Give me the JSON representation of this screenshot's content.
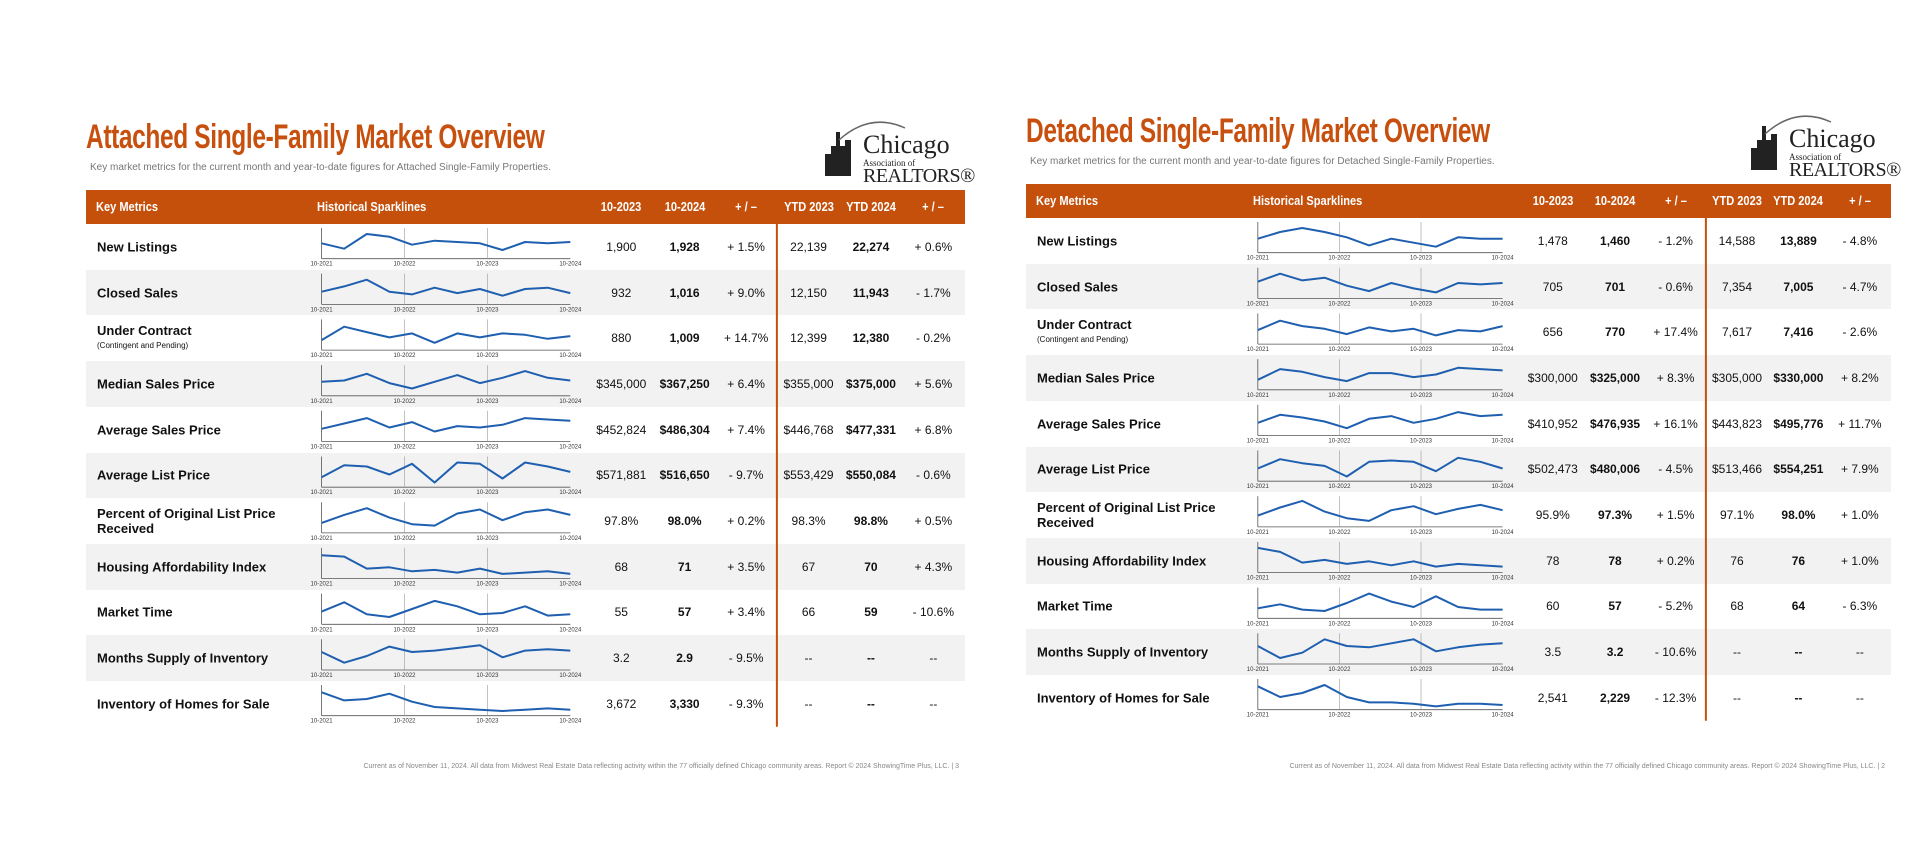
{
  "logo": {
    "name": "Chicago",
    "line2": "Association of",
    "line3": "REALTORS®"
  },
  "sparkline_axis": [
    "10-2021",
    "10-2022",
    "10-2023",
    "10-2024"
  ],
  "sparkline_ylim": [
    0,
    100
  ],
  "pages": [
    {
      "title": "Attached Single-Family Market Overview",
      "subtitle": "Key market metrics for the current month and year-to-date figures for Attached Single-Family Properties.",
      "headers": [
        "Key Metrics",
        "Historical Sparklines",
        "10-2023",
        "10-2024",
        "+ / –",
        "YTD 2023",
        "YTD 2024",
        "+ / –"
      ],
      "rows": [
        {
          "metric": "New Listings",
          "sparkline": [
            50,
            30,
            85,
            75,
            45,
            60,
            55,
            50,
            25,
            55,
            50,
            55
          ],
          "values": [
            "1,900",
            "1,928",
            "+ 1.5%",
            "22,139",
            "22,274",
            "+ 0.6%"
          ]
        },
        {
          "metric": "Closed Sales",
          "sparkline": [
            40,
            60,
            85,
            40,
            30,
            55,
            35,
            50,
            25,
            50,
            55,
            35
          ],
          "values": [
            "932",
            "1,016",
            "+ 9.0%",
            "12,150",
            "11,943",
            "- 1.7%"
          ]
        },
        {
          "metric": "Under Contract",
          "note": "(Contingent and Pending)",
          "sparkline": [
            30,
            80,
            60,
            40,
            55,
            20,
            55,
            40,
            55,
            50,
            35,
            45
          ],
          "values": [
            "880",
            "1,009",
            "+ 14.7%",
            "12,399",
            "12,380",
            "- 0.2%"
          ]
        },
        {
          "metric": "Median Sales Price",
          "sparkline": [
            45,
            50,
            75,
            40,
            20,
            45,
            70,
            40,
            60,
            85,
            60,
            50
          ],
          "values": [
            "$345,000",
            "$367,250",
            "+ 6.4%",
            "$355,000",
            "$375,000",
            "+ 5.6%"
          ]
        },
        {
          "metric": "Average Sales Price",
          "sparkline": [
            40,
            60,
            80,
            45,
            65,
            30,
            50,
            45,
            55,
            80,
            75,
            70
          ],
          "values": [
            "$452,824",
            "$486,304",
            "+ 7.4%",
            "$446,768",
            "$477,331",
            "+ 6.8%"
          ]
        },
        {
          "metric": "Average List Price",
          "sparkline": [
            30,
            75,
            70,
            40,
            80,
            10,
            85,
            80,
            25,
            85,
            70,
            50
          ],
          "values": [
            "$571,881",
            "$516,650",
            "- 9.7%",
            "$553,429",
            "$550,084",
            "- 0.6%"
          ]
        },
        {
          "metric": "Percent of Original List Price Received",
          "sparkline": [
            30,
            60,
            85,
            50,
            25,
            20,
            65,
            80,
            40,
            70,
            80,
            60
          ],
          "values": [
            "97.8%",
            "98.0%",
            "+ 0.2%",
            "98.3%",
            "98.8%",
            "+ 0.5%"
          ]
        },
        {
          "metric": "Housing Affordability Index",
          "sparkline": [
            80,
            75,
            30,
            35,
            20,
            25,
            15,
            30,
            10,
            15,
            20,
            10
          ],
          "values": [
            "68",
            "71",
            "+ 3.5%",
            "67",
            "70",
            "+ 4.3%"
          ]
        },
        {
          "metric": "Market Time",
          "sparkline": [
            40,
            75,
            30,
            20,
            50,
            80,
            60,
            30,
            35,
            60,
            25,
            30
          ],
          "values": [
            "55",
            "57",
            "+ 3.4%",
            "66",
            "59",
            "- 10.6%"
          ]
        },
        {
          "metric": "Months Supply of Inventory",
          "sparkline": [
            60,
            20,
            45,
            80,
            60,
            65,
            75,
            85,
            40,
            65,
            70,
            65
          ],
          "values": [
            "3.2",
            "2.9",
            "- 9.5%",
            "--",
            "--",
            "--"
          ]
        },
        {
          "metric": "Inventory of Homes for Sale",
          "sparkline": [
            80,
            50,
            55,
            75,
            45,
            25,
            20,
            15,
            10,
            15,
            20,
            15
          ],
          "values": [
            "3,672",
            "3,330",
            "- 9.3%",
            "--",
            "--",
            "--"
          ]
        }
      ],
      "footer": "Current as of November 11, 2024.  All data from Midwest Real Estate Data reflecting activity within the 77 officially defined Chicago community areas. Report © 2024 ShowingTime Plus, LLC.  |  3"
    },
    {
      "title": "Detached Single-Family Market Overview",
      "subtitle": "Key market metrics for the current month and year-to-date figures for Detached Single-Family Properties.",
      "headers": [
        "Key Metrics",
        "Historical Sparklines",
        "10-2023",
        "10-2024",
        "+ / –",
        "YTD 2023",
        "YTD 2024",
        "+ / –"
      ],
      "rows": [
        {
          "metric": "New Listings",
          "sparkline": [
            45,
            70,
            85,
            70,
            50,
            20,
            45,
            30,
            15,
            50,
            45,
            45
          ],
          "values": [
            "1,478",
            "1,460",
            "- 1.2%",
            "14,588",
            "13,889",
            "- 4.8%"
          ]
        },
        {
          "metric": "Closed Sales",
          "sparkline": [
            55,
            85,
            60,
            70,
            40,
            20,
            50,
            30,
            15,
            50,
            45,
            50
          ],
          "values": [
            "705",
            "701",
            "- 0.6%",
            "7,354",
            "7,005",
            "- 4.7%"
          ]
        },
        {
          "metric": "Under Contract",
          "note": "(Contingent and Pending)",
          "sparkline": [
            45,
            80,
            60,
            50,
            30,
            55,
            40,
            50,
            25,
            45,
            40,
            60
          ],
          "values": [
            "656",
            "770",
            "+ 17.4%",
            "7,617",
            "7,416",
            "- 2.6%"
          ]
        },
        {
          "metric": "Median Sales Price",
          "sparkline": [
            30,
            70,
            60,
            40,
            25,
            55,
            55,
            40,
            50,
            75,
            70,
            65
          ],
          "values": [
            "$300,000",
            "$325,000",
            "+ 8.3%",
            "$305,000",
            "$330,000",
            "+ 8.2%"
          ]
        },
        {
          "metric": "Average Sales Price",
          "sparkline": [
            40,
            70,
            60,
            45,
            20,
            55,
            65,
            40,
            55,
            80,
            65,
            70
          ],
          "values": [
            "$410,952",
            "$476,935",
            "+ 16.1%",
            "$443,823",
            "$495,776",
            "+ 11.7%"
          ]
        },
        {
          "metric": "Average List Price",
          "sparkline": [
            40,
            75,
            60,
            50,
            10,
            65,
            70,
            65,
            30,
            80,
            65,
            40
          ],
          "values": [
            "$502,473",
            "$480,006",
            "- 4.5%",
            "$513,466",
            "$554,251",
            "+ 7.9%"
          ]
        },
        {
          "metric": "Percent of Original List Price Received",
          "sparkline": [
            35,
            65,
            90,
            50,
            25,
            15,
            55,
            70,
            40,
            60,
            75,
            55
          ],
          "values": [
            "95.9%",
            "97.3%",
            "+ 1.5%",
            "97.1%",
            "98.0%",
            "+ 1.0%"
          ]
        },
        {
          "metric": "Housing Affordability Index",
          "sparkline": [
            85,
            70,
            30,
            40,
            25,
            35,
            20,
            35,
            15,
            25,
            20,
            15
          ],
          "values": [
            "78",
            "78",
            "+ 0.2%",
            "76",
            "76",
            "+ 1.0%"
          ]
        },
        {
          "metric": "Market Time",
          "sparkline": [
            30,
            45,
            25,
            20,
            50,
            85,
            55,
            35,
            75,
            35,
            25,
            25
          ],
          "values": [
            "60",
            "57",
            "- 5.2%",
            "68",
            "64",
            "- 6.3%"
          ]
        },
        {
          "metric": "Months Supply of Inventory",
          "sparkline": [
            60,
            15,
            35,
            85,
            60,
            55,
            70,
            85,
            40,
            55,
            65,
            70
          ],
          "values": [
            "3.5",
            "3.2",
            "- 10.6%",
            "--",
            "--",
            "--"
          ]
        },
        {
          "metric": "Inventory of Homes for Sale",
          "sparkline": [
            80,
            40,
            55,
            85,
            40,
            20,
            20,
            15,
            5,
            15,
            15,
            10
          ],
          "values": [
            "2,541",
            "2,229",
            "- 12.3%",
            "--",
            "--",
            "--"
          ]
        }
      ],
      "footer": "Current as of November 11, 2024.  All data from Midwest Real Estate Data reflecting activity within the 77 officially defined Chicago community areas. Report © 2024 ShowingTime Plus, LLC.  |  2"
    }
  ]
}
